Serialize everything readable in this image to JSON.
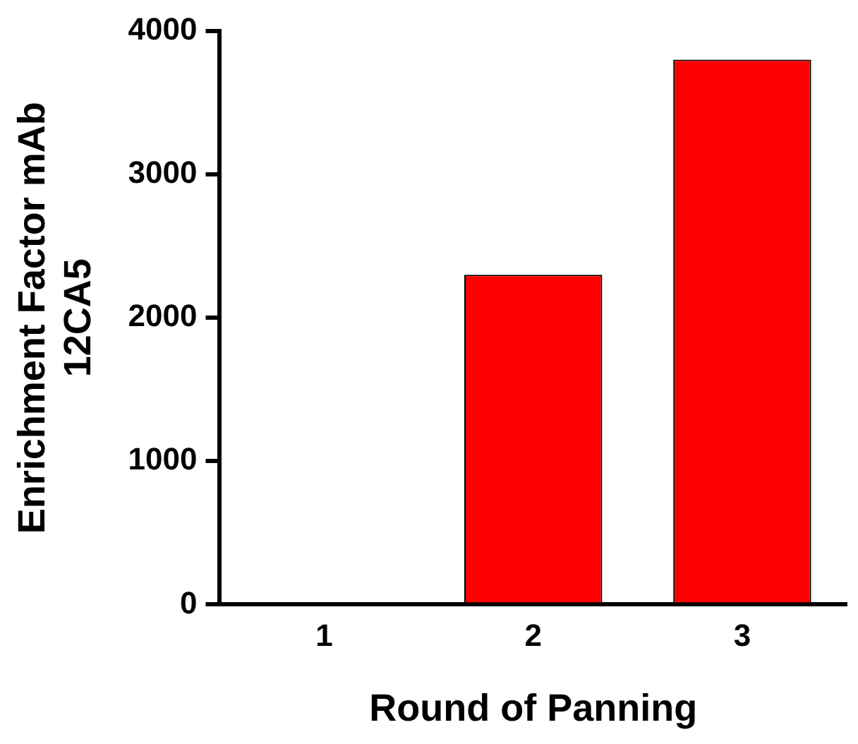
{
  "chart_data": {
    "type": "bar",
    "xlabel": "Round of Panning",
    "ylabel": "Enrichment Factor mAb\n12CA5",
    "categories": [
      "1",
      "2",
      "3"
    ],
    "values": [
      0,
      2300,
      3800
    ],
    "color": "#ff0000",
    "ylim": [
      0,
      4000
    ],
    "yticks": [
      0,
      1000,
      2000,
      3000,
      4000
    ],
    "grid": false,
    "legend": false
  }
}
